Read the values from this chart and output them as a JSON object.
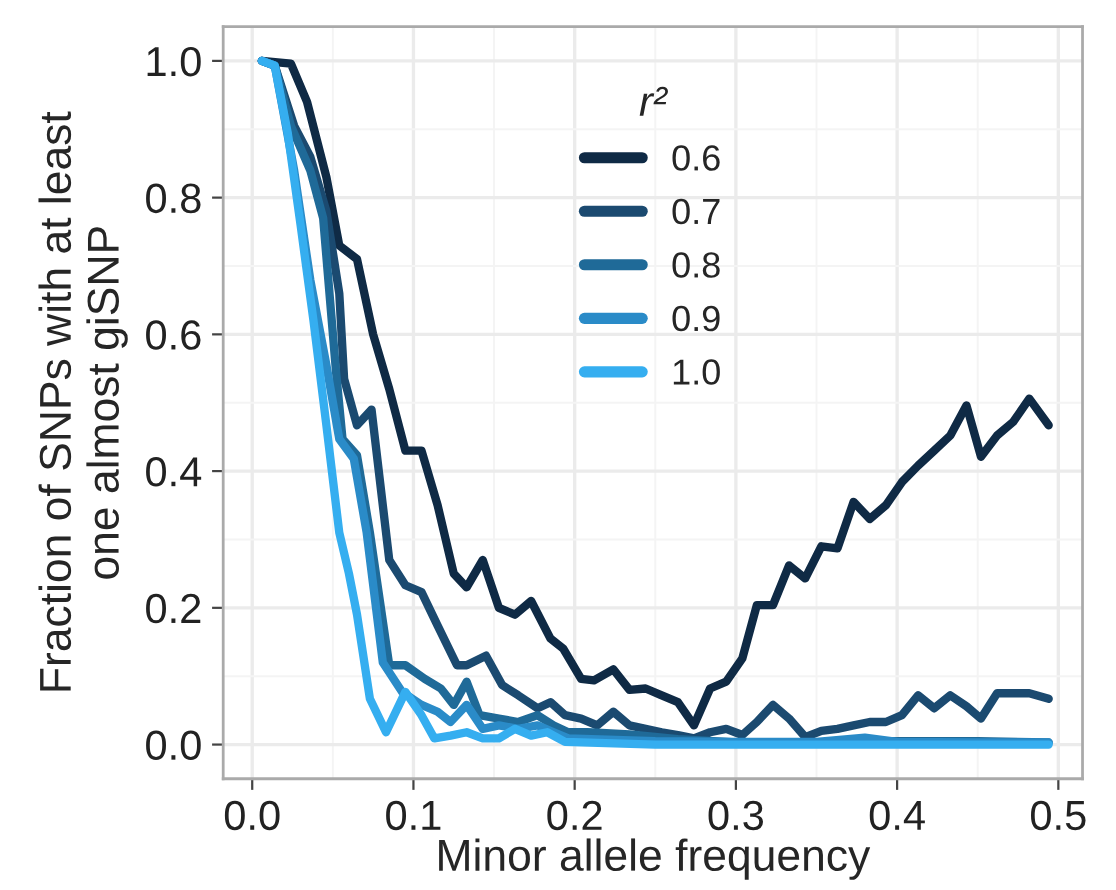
{
  "chart_data": {
    "type": "line",
    "xlabel": "Minor allele frequency",
    "ylabel": "Fraction of SNPs with at least\none almost giSNP",
    "legend_title": "r²",
    "legend": "top",
    "grid": true,
    "marker": "none",
    "line_style": "solid",
    "xlim": [
      -0.018,
      0.515
    ],
    "xticks": [
      {
        "value": 0,
        "label": "0.0"
      },
      0.1,
      0.2,
      0.3,
      0.4,
      0.5
    ],
    "ylim": [
      -0.05,
      1.05
    ],
    "yticks": [
      {
        "value": 0,
        "label": "0.0"
      },
      0.2,
      0.4,
      0.6,
      0.8,
      {
        "value": 1,
        "label": "1.0"
      }
    ],
    "series": [
      {
        "name": "0.6",
        "color": "#0f2a45",
        "x": [
          0.006,
          0.024,
          0.034,
          0.046,
          0.054,
          0.065,
          0.075,
          0.085,
          0.095,
          0.105,
          0.115,
          0.125,
          0.133,
          0.143,
          0.153,
          0.163,
          0.173,
          0.185,
          0.193,
          0.204,
          0.212,
          0.224,
          0.234,
          0.244,
          0.254,
          0.264,
          0.274,
          0.284,
          0.294,
          0.304,
          0.313,
          0.323,
          0.333,
          0.343,
          0.353,
          0.363,
          0.373,
          0.383,
          0.393,
          0.403,
          0.413,
          0.423,
          0.433,
          0.443,
          0.452,
          0.462,
          0.472,
          0.482,
          0.494
        ],
        "values": [
          1.0,
          0.996,
          0.94,
          0.83,
          0.73,
          0.71,
          0.6,
          0.52,
          0.43,
          0.43,
          0.35,
          0.25,
          0.23,
          0.27,
          0.2,
          0.19,
          0.21,
          0.155,
          0.14,
          0.096,
          0.094,
          0.11,
          0.08,
          0.082,
          0.072,
          0.062,
          0.028,
          0.082,
          0.092,
          0.126,
          0.204,
          0.204,
          0.262,
          0.243,
          0.29,
          0.287,
          0.355,
          0.33,
          0.35,
          0.384,
          0.408,
          0.43,
          0.452,
          0.496,
          0.421,
          0.452,
          0.472,
          0.506,
          0.467
        ]
      },
      {
        "name": "0.7",
        "color": "#1b4a70",
        "x": [
          0.006,
          0.014,
          0.026,
          0.036,
          0.046,
          0.054,
          0.057,
          0.065,
          0.074,
          0.085,
          0.095,
          0.105,
          0.115,
          0.127,
          0.133,
          0.145,
          0.155,
          0.165,
          0.177,
          0.185,
          0.194,
          0.204,
          0.214,
          0.224,
          0.234,
          0.244,
          0.254,
          0.264,
          0.274,
          0.284,
          0.294,
          0.304,
          0.313,
          0.323,
          0.333,
          0.343,
          0.353,
          0.363,
          0.373,
          0.383,
          0.393,
          0.403,
          0.413,
          0.423,
          0.433,
          0.443,
          0.452,
          0.462,
          0.472,
          0.482,
          0.494
        ],
        "values": [
          1.0,
          0.993,
          0.905,
          0.86,
          0.78,
          0.66,
          0.535,
          0.467,
          0.49,
          0.27,
          0.233,
          0.223,
          0.174,
          0.116,
          0.116,
          0.13,
          0.087,
          0.072,
          0.053,
          0.062,
          0.043,
          0.038,
          0.028,
          0.048,
          0.028,
          0.023,
          0.018,
          0.014,
          0.009,
          0.018,
          0.023,
          0.014,
          0.033,
          0.058,
          0.038,
          0.011,
          0.02,
          0.023,
          0.028,
          0.033,
          0.033,
          0.043,
          0.072,
          0.053,
          0.072,
          0.056,
          0.038,
          0.075,
          0.075,
          0.075,
          0.067
        ]
      },
      {
        "name": "0.8",
        "color": "#1f6a98",
        "x": [
          0.006,
          0.014,
          0.024,
          0.036,
          0.044,
          0.052,
          0.056,
          0.065,
          0.073,
          0.085,
          0.095,
          0.107,
          0.117,
          0.125,
          0.133,
          0.141,
          0.153,
          0.165,
          0.177,
          0.187,
          0.196,
          0.208,
          0.234,
          0.264,
          0.3,
          0.35,
          0.4,
          0.45,
          0.494
        ],
        "values": [
          1.0,
          0.993,
          0.905,
          0.84,
          0.77,
          0.545,
          0.447,
          0.423,
          0.31,
          0.116,
          0.116,
          0.096,
          0.082,
          0.058,
          0.092,
          0.043,
          0.038,
          0.033,
          0.043,
          0.028,
          0.018,
          0.018,
          0.015,
          0.008,
          0.003,
          0.003,
          0.005,
          0.005,
          0.003
        ]
      },
      {
        "name": "0.9",
        "color": "#2a8bc8",
        "x": [
          0.006,
          0.014,
          0.026,
          0.036,
          0.046,
          0.054,
          0.063,
          0.071,
          0.081,
          0.093,
          0.105,
          0.115,
          0.123,
          0.133,
          0.143,
          0.153,
          0.165,
          0.177,
          0.187,
          0.196,
          0.25,
          0.3,
          0.35,
          0.38,
          0.4,
          0.45,
          0.494
        ],
        "values": [
          1.0,
          0.993,
          0.84,
          0.68,
          0.555,
          0.447,
          0.418,
          0.31,
          0.12,
          0.077,
          0.058,
          0.048,
          0.033,
          0.058,
          0.023,
          0.028,
          0.023,
          0.028,
          0.018,
          0.009,
          0.005,
          0.004,
          0.004,
          0.01,
          0.004,
          0.003,
          0.003
        ]
      },
      {
        "name": "1.0",
        "color": "#35aef0",
        "x": [
          0.006,
          0.014,
          0.022,
          0.03,
          0.038,
          0.046,
          0.054,
          0.06,
          0.065,
          0.073,
          0.083,
          0.095,
          0.105,
          0.113,
          0.123,
          0.133,
          0.143,
          0.153,
          0.163,
          0.173,
          0.183,
          0.194,
          0.25,
          0.3,
          0.35,
          0.4,
          0.45,
          0.494
        ],
        "values": [
          1.0,
          0.993,
          0.895,
          0.76,
          0.62,
          0.467,
          0.31,
          0.25,
          0.19,
          0.067,
          0.018,
          0.077,
          0.043,
          0.009,
          0.013,
          0.018,
          0.009,
          0.009,
          0.023,
          0.013,
          0.018,
          0.004,
          0.0,
          0.0,
          0.0,
          0.0,
          0.0,
          0.0
        ]
      }
    ]
  }
}
